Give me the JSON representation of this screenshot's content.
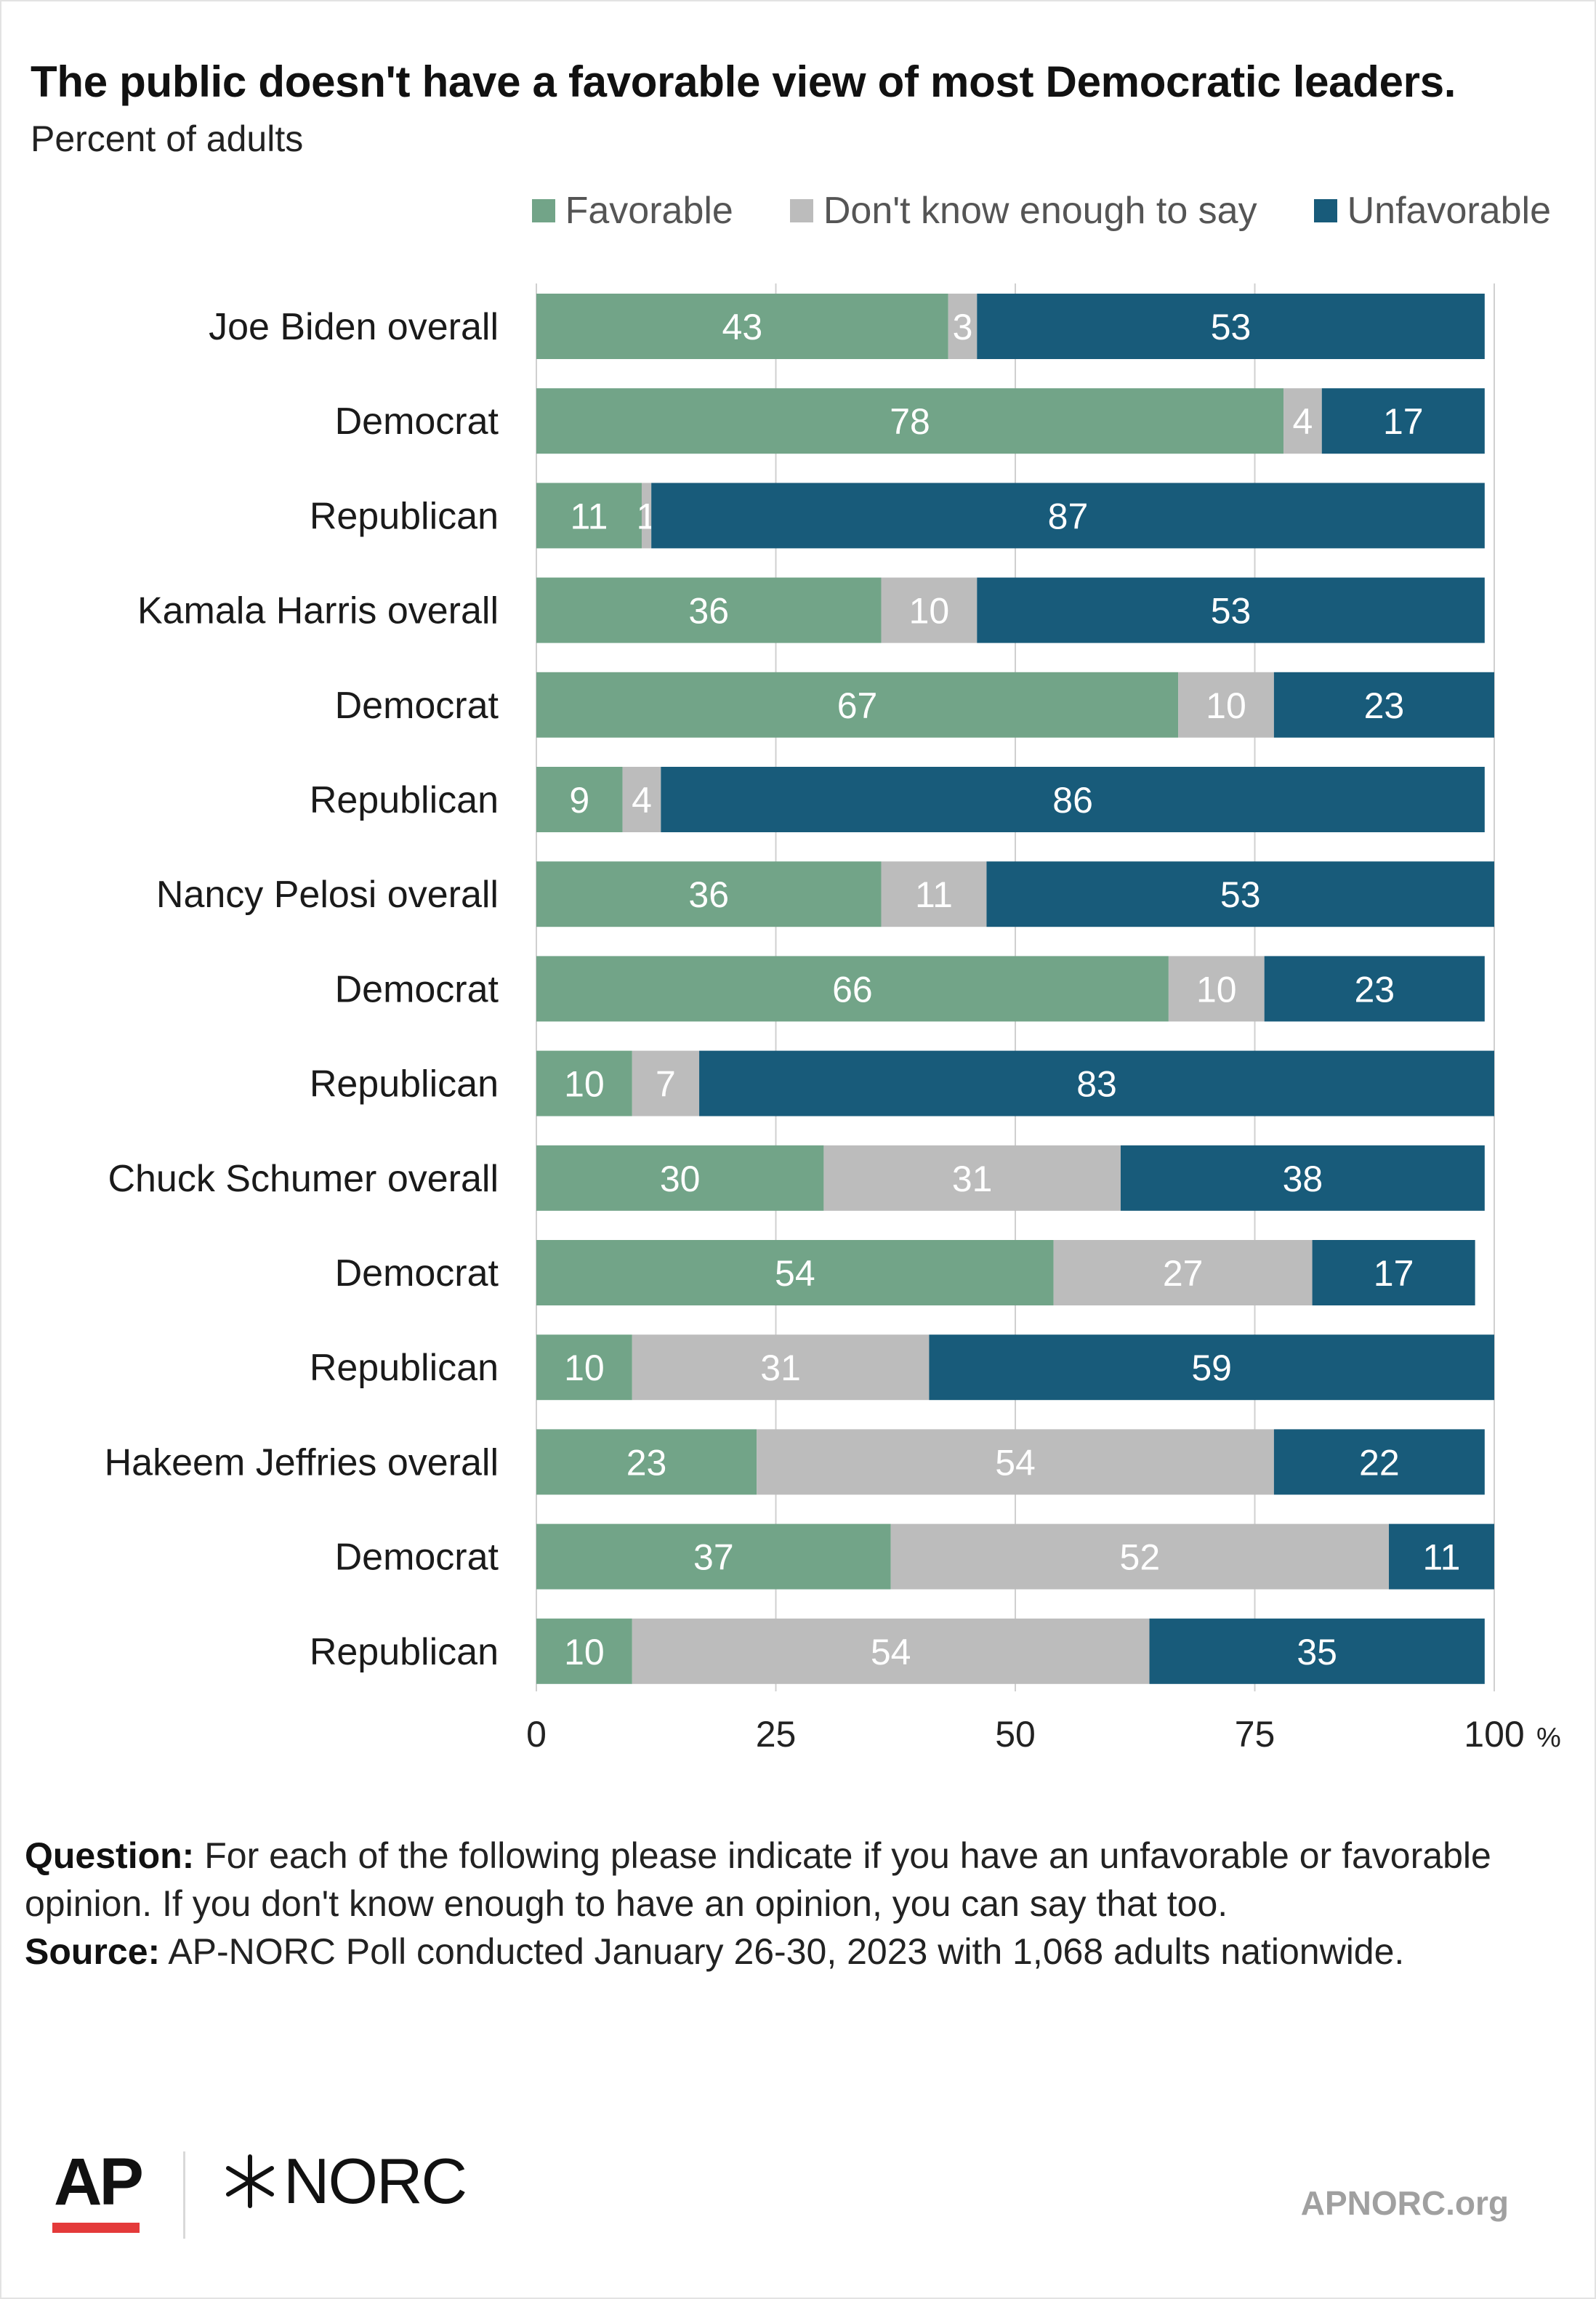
{
  "header": {
    "title": "The public doesn't have a favorable view of most Democratic leaders.",
    "subtitle": "Percent of adults"
  },
  "colors": {
    "favorable": "#72a488",
    "dont_know": "#bcbcbc",
    "unfavorable": "#185b7a",
    "gridline": "#d0d0d0"
  },
  "chart_data": {
    "type": "bar",
    "orientation": "horizontal",
    "stacked": true,
    "categories": [
      "Joe Biden overall",
      "Democrat",
      "Republican",
      "Kamala Harris overall",
      "Democrat",
      "Republican",
      "Nancy Pelosi overall",
      "Democrat",
      "Republican",
      "Chuck Schumer overall",
      "Democrat",
      "Republican",
      "Hakeem Jeffries overall",
      "Democrat",
      "Republican"
    ],
    "series": [
      {
        "name": "Favorable",
        "values": [
          43,
          78,
          11,
          36,
          67,
          9,
          36,
          66,
          10,
          30,
          54,
          10,
          23,
          37,
          10
        ]
      },
      {
        "name": "Don't know enough to say",
        "values": [
          3,
          4,
          1,
          10,
          10,
          4,
          11,
          10,
          7,
          31,
          27,
          31,
          54,
          52,
          54
        ]
      },
      {
        "name": "Unfavorable",
        "values": [
          53,
          17,
          87,
          53,
          23,
          86,
          53,
          23,
          83,
          38,
          17,
          59,
          22,
          11,
          35
        ]
      }
    ],
    "xlim": [
      0,
      100
    ],
    "xticks": [
      0,
      25,
      50,
      75,
      100
    ],
    "xtick_labels": [
      "0",
      "25",
      "50",
      "75",
      "100"
    ],
    "x_unit": "%",
    "grid": true,
    "legend_position": "top-right"
  },
  "footer": {
    "question_label": "Question:",
    "question_text": "For each of the following please indicate if you have an unfavorable or favorable opinion. If you don't know enough to have an opinion, you can say that too.",
    "source_label": "Source:",
    "source_text": "AP-NORC Poll conducted January 26-30, 2023 with 1,068 adults nationwide."
  },
  "branding": {
    "ap_logo": "AP",
    "norc_logo": "NORC",
    "norc_icon": "norc-star-icon",
    "website": "APNORC.org"
  }
}
